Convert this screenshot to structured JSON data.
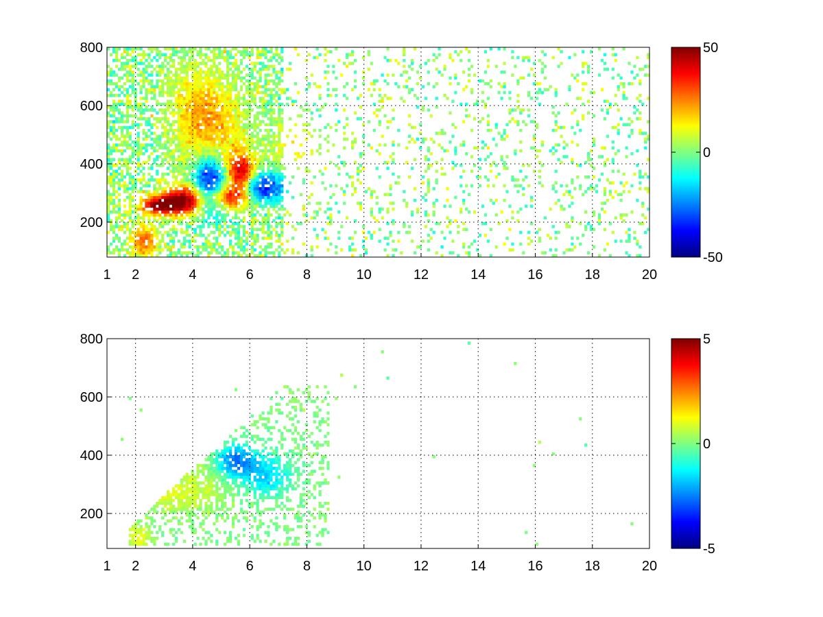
{
  "colormap": "jet",
  "chart_data": [
    {
      "type": "heatmap",
      "title": "",
      "xlabel": "",
      "ylabel": "",
      "xlim": [
        1,
        20
      ],
      "ylim": [
        80,
        800
      ],
      "xticks": [
        1,
        2,
        4,
        6,
        8,
        10,
        12,
        14,
        16,
        18,
        20
      ],
      "yticks": [
        200,
        400,
        600,
        800
      ],
      "grid": true,
      "clim": [
        -50,
        50
      ],
      "colorbar": {
        "ticks": [
          -50,
          0,
          50
        ]
      },
      "blobs": [
        {
          "x": 2.3,
          "y": 135,
          "sx": 0.35,
          "sy": 40,
          "v": 28
        },
        {
          "x": 2.8,
          "y": 258,
          "sx": 0.45,
          "sy": 22,
          "v": 45
        },
        {
          "x": 3.7,
          "y": 275,
          "sx": 0.55,
          "sy": 35,
          "v": 50
        },
        {
          "x": 4.6,
          "y": 325,
          "sx": 0.4,
          "sy": 70,
          "v": -45
        },
        {
          "x": 5.2,
          "y": 290,
          "sx": 0.55,
          "sy": 30,
          "v": 40
        },
        {
          "x": 5.7,
          "y": 360,
          "sx": 0.35,
          "sy": 50,
          "v": 48
        },
        {
          "x": 6.3,
          "y": 320,
          "sx": 0.7,
          "sy": 35,
          "v": -40
        },
        {
          "x": 4.2,
          "y": 580,
          "sx": 0.7,
          "sy": 120,
          "v": 15
        },
        {
          "x": 5.0,
          "y": 510,
          "sx": 0.8,
          "sy": 110,
          "v": 12
        },
        {
          "x": 7.6,
          "y": 460,
          "sx": 0.5,
          "sy": 70,
          "v": 14
        }
      ],
      "density": {
        "core": [
          1.5,
          7.2
        ],
        "sparse_to": 20
      }
    },
    {
      "type": "heatmap",
      "title": "",
      "xlabel": "",
      "ylabel": "",
      "xlim": [
        1,
        20
      ],
      "ylim": [
        80,
        800
      ],
      "xticks": [
        1,
        2,
        4,
        6,
        8,
        10,
        12,
        14,
        16,
        18,
        20
      ],
      "yticks": [
        200,
        400,
        600,
        800
      ],
      "grid": true,
      "clim": [
        -5,
        5
      ],
      "colorbar": {
        "ticks": [
          -5,
          0,
          5
        ]
      },
      "blobs": [
        {
          "x": 2.1,
          "y": 120,
          "sx": 0.3,
          "sy": 30,
          "v": 1.2
        },
        {
          "x": 3.2,
          "y": 260,
          "sx": 0.6,
          "sy": 35,
          "v": 0.8
        },
        {
          "x": 4.3,
          "y": 300,
          "sx": 0.7,
          "sy": 60,
          "v": 0.6
        },
        {
          "x": 5.5,
          "y": 380,
          "sx": 0.5,
          "sy": 40,
          "v": -2.5
        },
        {
          "x": 6.6,
          "y": 330,
          "sx": 0.6,
          "sy": 50,
          "v": -1.6
        },
        {
          "x": 4.0,
          "y": 560,
          "sx": 0.6,
          "sy": 80,
          "v": 0.4
        }
      ],
      "region": {
        "x": [
          1.8,
          8.8
        ],
        "y": [
          95,
          640
        ]
      }
    }
  ]
}
